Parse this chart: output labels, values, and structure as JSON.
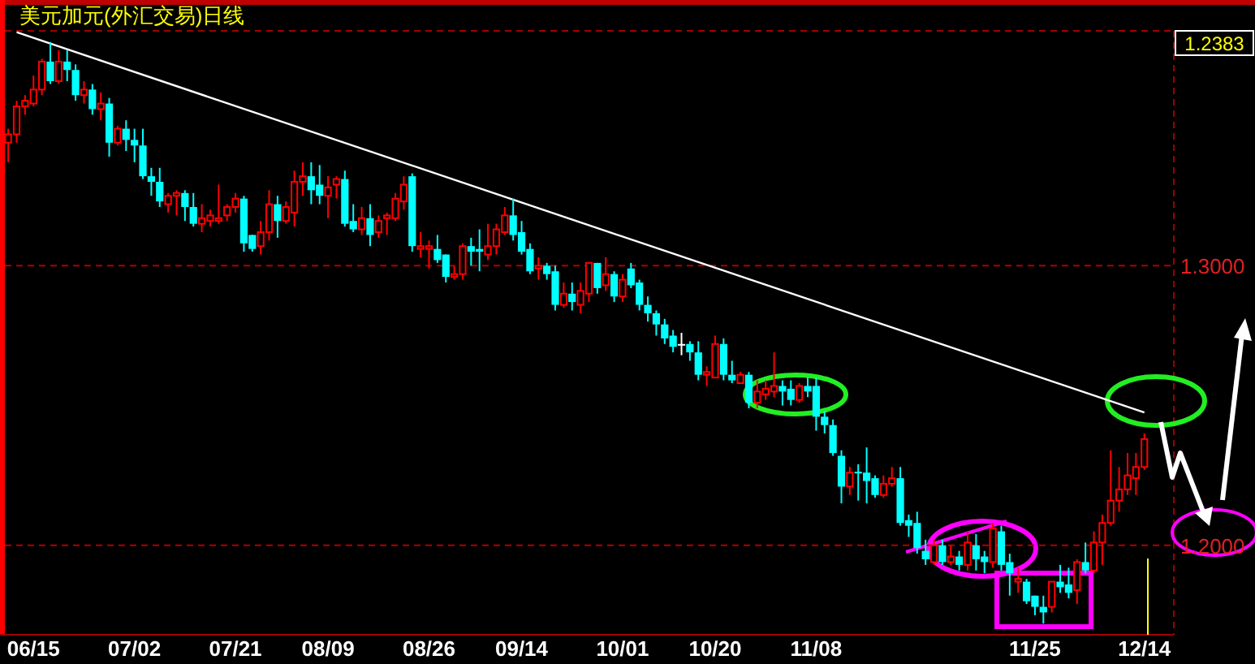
{
  "chart_data": {
    "type": "candlestick",
    "title": "美元加元(外汇交易)日线",
    "categories": [
      null,
      null,
      null,
      "06/15",
      null,
      null,
      null,
      null,
      null,
      null,
      null,
      null,
      null,
      null,
      null,
      "07/02",
      null,
      null,
      null,
      null,
      null,
      null,
      null,
      null,
      null,
      null,
      null,
      "07/21",
      null,
      null,
      null,
      null,
      null,
      null,
      null,
      null,
      null,
      null,
      "08/09",
      null,
      null,
      null,
      null,
      null,
      null,
      null,
      null,
      null,
      null,
      null,
      "08/26",
      null,
      null,
      null,
      null,
      null,
      null,
      null,
      null,
      null,
      null,
      "09/14",
      null,
      null,
      null,
      null,
      null,
      null,
      null,
      null,
      null,
      null,
      null,
      "10/01",
      null,
      null,
      null,
      null,
      null,
      null,
      null,
      null,
      null,
      null,
      "10/20",
      null,
      null,
      null,
      null,
      null,
      null,
      null,
      null,
      null,
      null,
      null,
      "11/08",
      null,
      null,
      null,
      null,
      null,
      null,
      null,
      null,
      null,
      null,
      null,
      null,
      null,
      null,
      null,
      null,
      null,
      null,
      null,
      null,
      null,
      null,
      null,
      null,
      null,
      "11/25",
      null,
      null,
      null,
      null,
      null,
      null,
      null,
      null,
      null,
      null,
      null,
      null,
      "12/14"
    ],
    "ohlc": [
      [
        1.344,
        1.349,
        1.337,
        1.347
      ],
      [
        1.347,
        1.359,
        1.344,
        1.357
      ],
      [
        1.357,
        1.361,
        1.354,
        1.359
      ],
      [
        1.358,
        1.368,
        1.357,
        1.363
      ],
      [
        1.363,
        1.374,
        1.361,
        1.373
      ],
      [
        1.373,
        1.38,
        1.365,
        1.366
      ],
      [
        1.366,
        1.377,
        1.365,
        1.373
      ],
      [
        1.373,
        1.377,
        1.366,
        1.37
      ],
      [
        1.37,
        1.372,
        1.359,
        1.361
      ],
      [
        1.361,
        1.366,
        1.358,
        1.363
      ],
      [
        1.363,
        1.365,
        1.354,
        1.356
      ],
      [
        1.356,
        1.362,
        1.352,
        1.358
      ],
      [
        1.358,
        1.36,
        1.339,
        1.344
      ],
      [
        1.344,
        1.35,
        1.343,
        1.349
      ],
      [
        1.349,
        1.352,
        1.341,
        1.345
      ],
      [
        1.345,
        1.349,
        1.337,
        1.343
      ],
      [
        1.343,
        1.349,
        1.331,
        1.332
      ],
      [
        1.332,
        1.335,
        1.325,
        1.33
      ],
      [
        1.33,
        1.335,
        1.321,
        1.323
      ],
      [
        1.322,
        1.326,
        1.319,
        1.325
      ],
      [
        1.325,
        1.327,
        1.318,
        1.326
      ],
      [
        1.326,
        1.327,
        1.316,
        1.321
      ],
      [
        1.321,
        1.326,
        1.314,
        1.315
      ],
      [
        1.315,
        1.322,
        1.312,
        1.317
      ],
      [
        1.316,
        1.32,
        1.314,
        1.318
      ],
      [
        1.316,
        1.329,
        1.315,
        1.317
      ],
      [
        1.318,
        1.322,
        1.316,
        1.321
      ],
      [
        1.321,
        1.326,
        1.319,
        1.324
      ],
      [
        1.324,
        1.325,
        1.305,
        1.308
      ],
      [
        1.311,
        1.311,
        1.305,
        1.306
      ],
      [
        1.307,
        1.316,
        1.304,
        1.312
      ],
      [
        1.312,
        1.327,
        1.309,
        1.322
      ],
      [
        1.322,
        1.325,
        1.31,
        1.316
      ],
      [
        1.316,
        1.323,
        1.315,
        1.321
      ],
      [
        1.319,
        1.334,
        1.314,
        1.33
      ],
      [
        1.33,
        1.337,
        1.325,
        1.332
      ],
      [
        1.332,
        1.337,
        1.322,
        1.327
      ],
      [
        1.329,
        1.336,
        1.322,
        1.325
      ],
      [
        1.325,
        1.332,
        1.317,
        1.328
      ],
      [
        1.329,
        1.332,
        1.324,
        1.331
      ],
      [
        1.331,
        1.334,
        1.314,
        1.315
      ],
      [
        1.316,
        1.322,
        1.312,
        1.313
      ],
      [
        1.313,
        1.321,
        1.311,
        1.317
      ],
      [
        1.317,
        1.322,
        1.307,
        1.311
      ],
      [
        1.312,
        1.318,
        1.31,
        1.316
      ],
      [
        1.317,
        1.319,
        1.311,
        1.318
      ],
      [
        1.317,
        1.326,
        1.316,
        1.324
      ],
      [
        1.323,
        1.332,
        1.32,
        1.329
      ],
      [
        1.332,
        1.333,
        1.305,
        1.307
      ],
      [
        1.306,
        1.312,
        1.303,
        1.307
      ],
      [
        1.306,
        1.309,
        1.299,
        1.307
      ],
      [
        1.306,
        1.311,
        1.301,
        1.302
      ],
      [
        1.304,
        1.304,
        1.294,
        1.296
      ],
      [
        1.296,
        1.3,
        1.295,
        1.297
      ],
      [
        1.297,
        1.308,
        1.295,
        1.307
      ],
      [
        1.307,
        1.31,
        1.3,
        1.305
      ],
      [
        1.306,
        1.313,
        1.298,
        1.305
      ],
      [
        1.304,
        1.315,
        1.302,
        1.307
      ],
      [
        1.307,
        1.315,
        1.304,
        1.313
      ],
      [
        1.312,
        1.321,
        1.311,
        1.318
      ],
      [
        1.318,
        1.324,
        1.309,
        1.311
      ],
      [
        1.312,
        1.316,
        1.304,
        1.305
      ],
      [
        1.306,
        1.308,
        1.297,
        1.298
      ],
      [
        1.299,
        1.303,
        1.295,
        1.3
      ],
      [
        1.3,
        1.301,
        1.295,
        1.297
      ],
      [
        1.298,
        1.3,
        1.284,
        1.286
      ],
      [
        1.286,
        1.294,
        1.285,
        1.29
      ],
      [
        1.29,
        1.294,
        1.284,
        1.287
      ],
      [
        1.286,
        1.294,
        1.283,
        1.291
      ],
      [
        1.29,
        1.301,
        1.287,
        1.301
      ],
      [
        1.301,
        1.301,
        1.29,
        1.292
      ],
      [
        1.293,
        1.303,
        1.291,
        1.297
      ],
      [
        1.297,
        1.298,
        1.287,
        1.289
      ],
      [
        1.289,
        1.297,
        1.287,
        1.295
      ],
      [
        1.299,
        1.301,
        1.292,
        1.293
      ],
      [
        1.294,
        1.295,
        1.284,
        1.286
      ],
      [
        1.286,
        1.289,
        1.28,
        1.283
      ],
      [
        1.283,
        1.284,
        1.275,
        1.279
      ],
      [
        1.279,
        1.281,
        1.272,
        1.274
      ],
      [
        1.275,
        1.277,
        1.269,
        1.271
      ],
      [
        1.272,
        1.276,
        1.268,
        1.272
      ],
      [
        1.272,
        1.273,
        1.266,
        1.269
      ],
      [
        1.269,
        1.273,
        1.259,
        1.261
      ],
      [
        1.261,
        1.264,
        1.257,
        1.262
      ],
      [
        1.26,
        1.275,
        1.26,
        1.272
      ],
      [
        1.272,
        1.274,
        1.259,
        1.261
      ],
      [
        1.261,
        1.266,
        1.258,
        1.259
      ],
      [
        1.258,
        1.262,
        1.258,
        1.261
      ],
      [
        1.261,
        1.262,
        1.249,
        1.251
      ],
      [
        1.251,
        1.259,
        1.249,
        1.255
      ],
      [
        1.254,
        1.259,
        1.252,
        1.256
      ],
      [
        1.255,
        1.269,
        1.253,
        1.257
      ],
      [
        1.257,
        1.259,
        1.25,
        1.255
      ],
      [
        1.256,
        1.259,
        1.25,
        1.252
      ],
      [
        1.252,
        1.258,
        1.251,
        1.257
      ],
      [
        1.257,
        1.26,
        1.253,
        1.255
      ],
      [
        1.257,
        1.26,
        1.241,
        1.246
      ],
      [
        1.246,
        1.248,
        1.24,
        1.243
      ],
      [
        1.243,
        1.245,
        1.232,
        1.233
      ],
      [
        1.232,
        1.234,
        1.215,
        1.221
      ],
      [
        1.221,
        1.228,
        1.218,
        1.226
      ],
      [
        1.2263,
        1.229,
        1.216,
        1.2257
      ],
      [
        1.226,
        1.235,
        1.215,
        1.223
      ],
      [
        1.224,
        1.225,
        1.217,
        1.218
      ],
      [
        1.218,
        1.225,
        1.217,
        1.222
      ],
      [
        1.222,
        1.228,
        1.221,
        1.224
      ],
      [
        1.224,
        1.228,
        1.207,
        1.208
      ],
      [
        1.209,
        1.211,
        1.203,
        1.207
      ],
      [
        1.208,
        1.212,
        1.197,
        1.199
      ],
      [
        1.198,
        1.202,
        1.193,
        1.195
      ],
      [
        1.194,
        1.202,
        1.193,
        1.2
      ],
      [
        1.2,
        1.202,
        1.193,
        1.194
      ],
      [
        1.194,
        1.2,
        1.193,
        1.196
      ],
      [
        1.196,
        1.198,
        1.191,
        1.193
      ],
      [
        1.193,
        1.205,
        1.191,
        1.201
      ],
      [
        1.2,
        1.204,
        1.191,
        1.195
      ],
      [
        1.196,
        1.198,
        1.19,
        1.194
      ],
      [
        1.194,
        1.208,
        1.192,
        1.206
      ],
      [
        1.205,
        1.207,
        1.191,
        1.193
      ],
      [
        1.194,
        1.197,
        1.182,
        1.19
      ],
      [
        1.187,
        1.192,
        1.183,
        1.188
      ],
      [
        1.187,
        1.188,
        1.179,
        1.18
      ],
      [
        1.182,
        1.182,
        1.175,
        1.178
      ],
      [
        1.178,
        1.182,
        1.172,
        1.176
      ],
      [
        1.178,
        1.187,
        1.176,
        1.187
      ],
      [
        1.187,
        1.193,
        1.183,
        1.185
      ],
      [
        1.186,
        1.192,
        1.181,
        1.183
      ],
      [
        1.184,
        1.195,
        1.179,
        1.194
      ],
      [
        1.194,
        1.201,
        1.19,
        1.191
      ],
      [
        1.191,
        1.205,
        1.19,
        1.201
      ],
      [
        1.201,
        1.211,
        1.193,
        1.208
      ],
      [
        1.208,
        1.234,
        1.207,
        1.216
      ],
      [
        1.216,
        1.228,
        1.212,
        1.22
      ],
      [
        1.22,
        1.233,
        1.218,
        1.225
      ],
      [
        1.224,
        1.233,
        1.218,
        1.228
      ],
      [
        1.228,
        1.24,
        1.227,
        1.238
      ]
    ],
    "colors": [
      "#ff0000",
      "#ff0000",
      "#ff0000",
      "#ff0000",
      "#ff0000",
      "#00ffff",
      "#ff0000",
      "#00ffff",
      "#00ffff",
      "#ff0000",
      "#00ffff",
      "#ff0000",
      "#00ffff",
      "#ff0000",
      "#00ffff",
      "#00ffff",
      "#00ffff",
      "#00ffff",
      "#00ffff",
      "#ff0000",
      "#ff0000",
      "#00ffff",
      "#00ffff",
      "#ff0000",
      "#ff0000",
      "#ff0000",
      "#ff0000",
      "#ff0000",
      "#00ffff",
      "#00ffff",
      "#ff0000",
      "#ff0000",
      "#00ffff",
      "#ff0000",
      "#ff0000",
      "#ff0000",
      "#00ffff",
      "#00ffff",
      "#ff0000",
      "#ff0000",
      "#00ffff",
      "#00ffff",
      "#ff0000",
      "#00ffff",
      "#ff0000",
      "#ff0000",
      "#ff0000",
      "#ff0000",
      "#00ffff",
      "#ff0000",
      "#ff0000",
      "#00ffff",
      "#00ffff",
      "#ff0000",
      "#ff0000",
      "#00ffff",
      "#00ffff",
      "#ff0000",
      "#ff0000",
      "#ff0000",
      "#00ffff",
      "#00ffff",
      "#00ffff",
      "#ff0000",
      "#00ffff",
      "#00ffff",
      "#ff0000",
      "#00ffff",
      "#ff0000",
      "#ff0000",
      "#00ffff",
      "#ff0000",
      "#00ffff",
      "#ff0000",
      "#00ffff",
      "#00ffff",
      "#00ffff",
      "#00ffff",
      "#00ffff",
      "#00ffff",
      "#ffffff",
      "#00ffff",
      "#00ffff",
      "#ff0000",
      "#ff0000",
      "#00ffff",
      "#00ffff",
      "#ff0000",
      "#00ffff",
      "#ff0000",
      "#ff0000",
      "#ff0000",
      "#00ffff",
      "#00ffff",
      "#ff0000",
      "#00ffff",
      "#00ffff",
      "#00ffff",
      "#00ffff",
      "#00ffff",
      "#ff0000",
      "#00ffff",
      "#00ffff",
      "#00ffff",
      "#ff0000",
      "#ff0000",
      "#00ffff",
      "#00ffff",
      "#00ffff",
      "#00ffff",
      "#ff0000",
      "#00ffff",
      "#ff0000",
      "#00ffff",
      "#ff0000",
      "#00ffff",
      "#00ffff",
      "#ff0000",
      "#00ffff",
      "#00ffff",
      "#ff0000",
      "#00ffff",
      "#00ffff",
      "#00ffff",
      "#ff0000",
      "#00ffff",
      "#00ffff",
      "#ff0000",
      "#00ffff",
      "#ff0000",
      "#ff0000",
      "#ff0000",
      "#ff0000",
      "#ff0000",
      "#ff0000",
      "#ff0000"
    ],
    "series": [
      {
        "type": "line",
        "values": [
          null,
          1.3835,
          null,
          null,
          null,
          null,
          null,
          null,
          null,
          null,
          null,
          null,
          null,
          null,
          null,
          null,
          null,
          null,
          null,
          null,
          null,
          null,
          null,
          null,
          null,
          null,
          null,
          null,
          null,
          null,
          null,
          null,
          null,
          null,
          null,
          null,
          null,
          null,
          null,
          null,
          null,
          null,
          null,
          null,
          null,
          null,
          null,
          null,
          null,
          null,
          null,
          null,
          null,
          null,
          null,
          null,
          null,
          null,
          null,
          null,
          null,
          null,
          null,
          null,
          null,
          null,
          null,
          null,
          null,
          null,
          null,
          null,
          null,
          null,
          null,
          null,
          null,
          null,
          null,
          null,
          null,
          null,
          null,
          null,
          null,
          null,
          null,
          null,
          null,
          null,
          null,
          null,
          null,
          null,
          null,
          null,
          null,
          null,
          null,
          null,
          null,
          null,
          null,
          null,
          null,
          null,
          null,
          null,
          null,
          null,
          null,
          null,
          null,
          null,
          null,
          null,
          null,
          null,
          null,
          null,
          null,
          null,
          null,
          null,
          null,
          null,
          null,
          null,
          null,
          null,
          null,
          null,
          null,
          null,
          null,
          1.2475
        ],
        "color": "#ffffff"
      }
    ],
    "ylim": [
      1.168,
      1.384
    ],
    "yticks": [
      {
        "value": 1.3,
        "label": "1.3000"
      },
      {
        "value": 1.2,
        "label": "1.2000"
      }
    ],
    "grid": "y",
    "annotations": [
      "1.2383"
    ]
  }
}
